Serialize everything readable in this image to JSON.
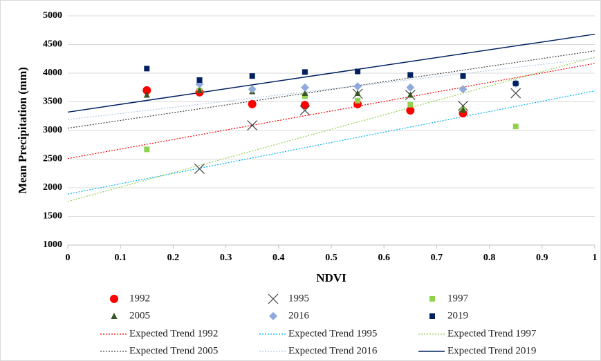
{
  "chart_data": {
    "type": "scatter",
    "x_label": "NDVI",
    "y_label": "Mean Precipitation (mm)",
    "xlim": [
      0,
      1
    ],
    "ylim": [
      1000,
      5000
    ],
    "xticks": [
      0,
      0.1,
      0.2,
      0.3,
      0.4,
      0.5,
      0.6,
      0.7,
      0.8,
      0.9,
      1
    ],
    "yticks": [
      1000,
      1500,
      2000,
      2500,
      3000,
      3500,
      4000,
      4500,
      5000
    ],
    "grid": true,
    "series": [
      {
        "name": "1992",
        "color": "#ff0000",
        "marker": "circle",
        "x": [
          0.15,
          0.25,
          0.35,
          0.45,
          0.55,
          0.65,
          0.75
        ],
        "values": [
          3700,
          3665,
          3460,
          3445,
          3460,
          3350,
          3300
        ]
      },
      {
        "name": "1995",
        "color": "#404040",
        "marker": "cross",
        "x": [
          0.25,
          0.35,
          0.45,
          0.55,
          0.65,
          0.75,
          0.85
        ],
        "values": [
          2330,
          3090,
          3350,
          3640,
          3620,
          3430,
          3650
        ]
      },
      {
        "name": "1997",
        "color": "#92d050",
        "marker": "square",
        "x": [
          0.15,
          0.25,
          0.45,
          0.55,
          0.65,
          0.75,
          0.85
        ],
        "values": [
          2670,
          3700,
          3600,
          3520,
          3450,
          3360,
          3070
        ]
      },
      {
        "name": "2005",
        "color": "#375623",
        "marker": "triangle",
        "x": [
          0.15,
          0.25,
          0.35,
          0.45,
          0.55,
          0.65,
          0.75
        ],
        "values": [
          3620,
          3700,
          3680,
          3650,
          3650,
          3620,
          3360
        ]
      },
      {
        "name": "2016",
        "color": "#8faadc",
        "marker": "diamond",
        "x": [
          0.25,
          0.35,
          0.45,
          0.55,
          0.65,
          0.75,
          0.85
        ],
        "values": [
          3810,
          3720,
          3750,
          3770,
          3750,
          3720,
          3820
        ]
      },
      {
        "name": "2019",
        "color": "#002060",
        "marker": "square",
        "x": [
          0.15,
          0.25,
          0.35,
          0.45,
          0.55,
          0.65,
          0.75,
          0.85
        ],
        "values": [
          4080,
          3880,
          3950,
          4020,
          4030,
          3970,
          3950,
          3820
        ]
      }
    ],
    "trends": [
      {
        "name": "Expected Trend 1992",
        "color": "#ff0000",
        "dash": "dotted",
        "x": [
          0,
          1
        ],
        "values": [
          2510,
          4170
        ]
      },
      {
        "name": "Expected Trend 1995",
        "color": "#00b0f0",
        "dash": "dotted",
        "x": [
          0,
          1
        ],
        "values": [
          1890,
          3690
        ]
      },
      {
        "name": "Expected Trend 1997",
        "color": "#92d050",
        "dash": "dotted",
        "x": [
          0,
          1
        ],
        "values": [
          1760,
          4280
        ]
      },
      {
        "name": "Expected Trend 2005",
        "color": "#404040",
        "dash": "dotted",
        "x": [
          0,
          1
        ],
        "values": [
          3040,
          4390
        ]
      },
      {
        "name": "Expected Trend 2016",
        "color": "#b4c7e7",
        "dash": "dotted",
        "x": [
          0,
          1
        ],
        "values": [
          3190,
          4260
        ]
      },
      {
        "name": "Expected Trend 2019",
        "color": "#002060",
        "dash": "solid",
        "x": [
          0,
          1
        ],
        "values": [
          3320,
          4680
        ]
      }
    ]
  }
}
